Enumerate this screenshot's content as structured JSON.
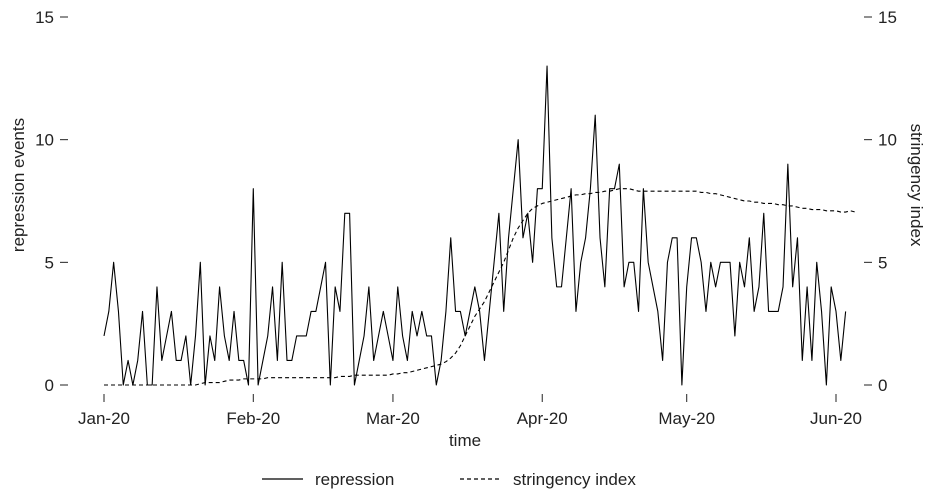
{
  "chart_data": {
    "type": "line",
    "xlabel": "time",
    "ylabel_left": "repression events",
    "ylabel_right": "stringency index",
    "ylim": [
      0,
      15
    ],
    "yticks": [
      0,
      5,
      10,
      15
    ],
    "xticks": [
      {
        "label": "Jan-20",
        "day": 0
      },
      {
        "label": "Feb-20",
        "day": 31
      },
      {
        "label": "Mar-20",
        "day": 60
      },
      {
        "label": "Apr-20",
        "day": 91
      },
      {
        "label": "May-20",
        "day": 121
      },
      {
        "label": "Jun-20",
        "day": 152
      }
    ],
    "grid": false,
    "legend_position": "bottom",
    "series": [
      {
        "name": "repression",
        "style": "solid",
        "color": "#000000",
        "values": [
          2,
          3,
          5,
          3,
          0,
          1,
          0,
          1,
          3,
          0,
          0,
          4,
          1,
          2,
          3,
          1,
          1,
          2,
          0,
          2,
          5,
          0,
          2,
          1,
          4,
          2,
          1,
          3,
          1,
          1,
          0,
          8,
          0,
          1,
          2,
          4,
          1,
          5,
          1,
          1,
          2,
          2,
          2,
          3,
          3,
          4,
          5,
          0,
          4,
          3,
          7,
          7,
          0,
          1,
          2,
          4,
          1,
          2,
          3,
          2,
          1,
          4,
          2,
          1,
          3,
          2,
          3,
          2,
          2,
          0,
          1,
          3,
          6,
          3,
          3,
          2,
          3,
          4,
          3,
          1,
          3,
          5,
          7,
          3,
          6,
          8,
          10,
          6,
          7,
          5,
          8,
          8,
          13,
          6,
          4,
          4,
          6,
          8,
          3,
          5,
          6,
          8,
          11,
          6,
          4,
          8,
          8,
          9,
          4,
          5,
          5,
          3,
          8,
          5,
          4,
          3,
          1,
          5,
          6,
          6,
          0,
          4,
          6,
          6,
          5,
          3,
          5,
          4,
          5,
          5,
          5,
          2,
          5,
          4,
          6,
          3,
          4,
          7,
          3,
          3,
          3,
          4,
          9,
          4,
          6,
          1,
          4,
          1,
          5,
          3,
          0,
          4,
          3,
          1,
          3
        ]
      },
      {
        "name": "stringency index",
        "style": "dashed",
        "color": "#000000",
        "values": [
          0,
          0,
          0,
          0,
          0,
          0,
          0,
          0,
          0,
          0,
          0,
          0,
          0,
          0,
          0,
          0,
          0,
          0,
          0,
          0,
          0.05,
          0.1,
          0.1,
          0.1,
          0.1,
          0.15,
          0.2,
          0.2,
          0.2,
          0.25,
          0.25,
          0.25,
          0.25,
          0.25,
          0.3,
          0.3,
          0.3,
          0.3,
          0.3,
          0.3,
          0.3,
          0.3,
          0.3,
          0.3,
          0.3,
          0.3,
          0.3,
          0.3,
          0.3,
          0.35,
          0.35,
          0.35,
          0.4,
          0.4,
          0.4,
          0.4,
          0.4,
          0.4,
          0.4,
          0.4,
          0.45,
          0.45,
          0.5,
          0.5,
          0.55,
          0.6,
          0.65,
          0.7,
          0.75,
          0.8,
          0.85,
          0.95,
          1.1,
          1.3,
          1.6,
          2.0,
          2.4,
          2.8,
          3.1,
          3.4,
          3.8,
          4.2,
          4.6,
          5.0,
          5.5,
          6.0,
          6.4,
          6.7,
          7.0,
          7.2,
          7.3,
          7.4,
          7.45,
          7.5,
          7.55,
          7.6,
          7.65,
          7.7,
          7.75,
          7.75,
          7.8,
          7.8,
          7.85,
          7.85,
          7.9,
          7.9,
          7.95,
          8.0,
          8.0,
          8.0,
          7.95,
          7.9,
          7.9,
          7.9,
          7.9,
          7.9,
          7.9,
          7.9,
          7.9,
          7.9,
          7.9,
          7.9,
          7.9,
          7.9,
          7.85,
          7.85,
          7.8,
          7.8,
          7.75,
          7.7,
          7.65,
          7.6,
          7.55,
          7.5,
          7.5,
          7.45,
          7.45,
          7.4,
          7.4,
          7.4,
          7.35,
          7.35,
          7.3,
          7.3,
          7.25,
          7.2,
          7.2,
          7.15,
          7.15,
          7.15,
          7.1,
          7.1,
          7.1,
          7.05,
          7.05,
          7.1,
          7.05
        ]
      }
    ]
  }
}
